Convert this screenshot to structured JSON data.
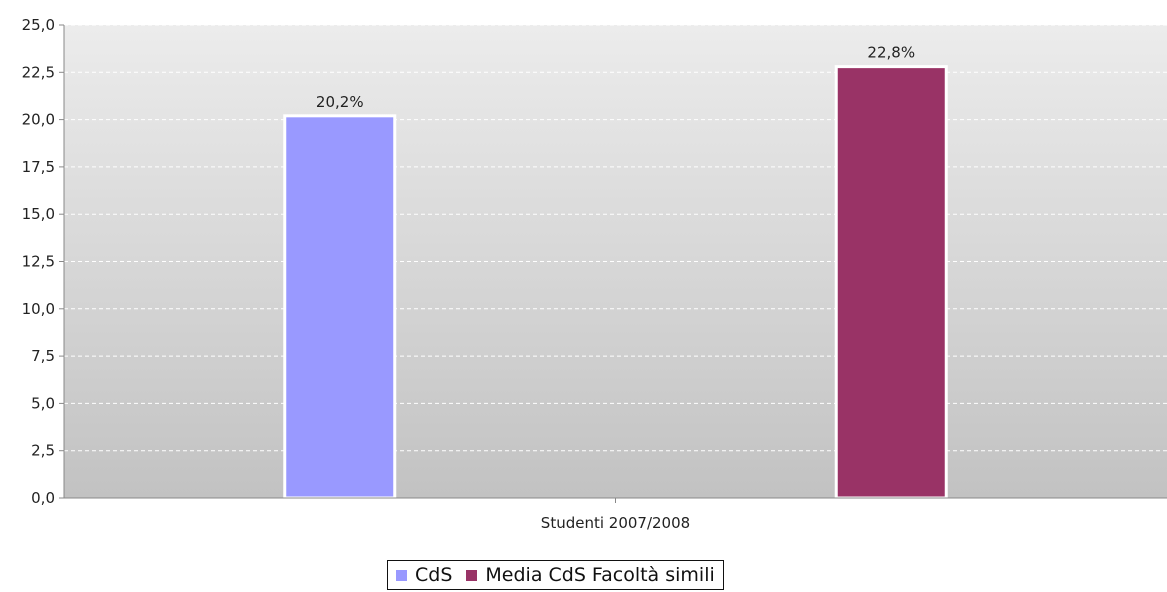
{
  "chart_data": {
    "type": "bar",
    "categories": [
      "Studenti 2007/2008"
    ],
    "series": [
      {
        "name": "CdS",
        "values": [
          20.2
        ],
        "color": "#9999ff",
        "label": "20,2%"
      },
      {
        "name": "Media CdS Facoltà simili",
        "values": [
          22.8
        ],
        "color": "#993366",
        "label": "22,8%"
      }
    ],
    "yticks": [
      "0,0",
      "2,5",
      "5,0",
      "7,5",
      "10,0",
      "12,5",
      "15,0",
      "17,5",
      "20,0",
      "22,5",
      "25,0"
    ],
    "ylim": [
      0,
      25
    ],
    "ystep": 2.5,
    "grid": true,
    "legend_position": "bottom",
    "plot_background": [
      "#ececec",
      "#c2c2c2"
    ],
    "title": "",
    "xlabel": "",
    "ylabel": ""
  }
}
